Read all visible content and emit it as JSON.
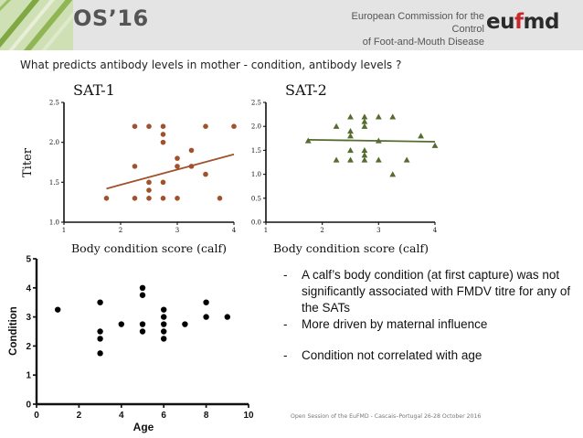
{
  "header": {
    "title": "OS’16",
    "organization_line1": "European Commission for the Control",
    "organization_line2": "of Foot-and-Mouth Disease",
    "logo_prefix": "eu",
    "logo_accent": "f",
    "logo_suffix": "md"
  },
  "slide": {
    "question": "What predicts antibody levels in mother - condition, antibody levels ?",
    "bullets": [
      "A calf’s body condition (at first capture) was not significantly associated with FMDV titre for any of the SATs",
      "More driven by maternal influence",
      "Condition not correlated with age"
    ],
    "footer": "Open Session of the EuFMD - Cascais–Portugal 26-28 October 2016"
  },
  "chart_data": [
    {
      "id": "sat1",
      "type": "scatter",
      "title": "SAT-1",
      "xlabel": "Body condition score (calf)",
      "ylabel": "Titer",
      "xlim": [
        1,
        4
      ],
      "ylim": [
        1.0,
        2.5
      ],
      "xticks": [
        1,
        2,
        3,
        4
      ],
      "yticks": [
        1.0,
        1.5,
        2.0,
        2.5
      ],
      "ytick_format": "1",
      "marker": "circle",
      "color": "#a0522d",
      "points": [
        [
          1.75,
          1.3
        ],
        [
          2.25,
          2.2
        ],
        [
          2.25,
          1.7
        ],
        [
          2.25,
          1.3
        ],
        [
          2.5,
          2.2
        ],
        [
          2.5,
          1.5
        ],
        [
          2.5,
          1.4
        ],
        [
          2.5,
          1.3
        ],
        [
          2.75,
          2.2
        ],
        [
          2.75,
          2.1
        ],
        [
          2.75,
          2.0
        ],
        [
          2.75,
          1.5
        ],
        [
          2.75,
          1.3
        ],
        [
          3.0,
          1.8
        ],
        [
          3.0,
          1.7
        ],
        [
          3.0,
          1.3
        ],
        [
          3.25,
          1.9
        ],
        [
          3.25,
          1.7
        ],
        [
          3.5,
          2.2
        ],
        [
          3.5,
          1.6
        ],
        [
          3.75,
          1.3
        ],
        [
          4.0,
          2.2
        ]
      ],
      "fit_line": [
        [
          1.75,
          1.42
        ],
        [
          4.0,
          1.85
        ]
      ]
    },
    {
      "id": "sat2",
      "type": "scatter",
      "title": "SAT-2",
      "xlabel": "Body condition score (calf)",
      "ylabel": "",
      "xlim": [
        1,
        4
      ],
      "ylim": [
        0.0,
        2.5
      ],
      "xticks": [
        1,
        2,
        3,
        4
      ],
      "yticks": [
        0.0,
        0.5,
        1.0,
        1.5,
        2.0,
        2.5
      ],
      "ytick_format": "1",
      "marker": "triangle",
      "color": "#556b2f",
      "points": [
        [
          1.75,
          1.7
        ],
        [
          2.25,
          2.0
        ],
        [
          2.25,
          1.3
        ],
        [
          2.5,
          2.2
        ],
        [
          2.5,
          1.9
        ],
        [
          2.5,
          1.8
        ],
        [
          2.5,
          1.5
        ],
        [
          2.5,
          1.3
        ],
        [
          2.75,
          2.2
        ],
        [
          2.75,
          2.1
        ],
        [
          2.75,
          2.0
        ],
        [
          2.75,
          1.5
        ],
        [
          2.75,
          1.4
        ],
        [
          2.75,
          1.3
        ],
        [
          3.0,
          2.2
        ],
        [
          3.0,
          1.7
        ],
        [
          3.0,
          1.3
        ],
        [
          3.25,
          2.2
        ],
        [
          3.25,
          1.0
        ],
        [
          3.5,
          1.3
        ],
        [
          3.75,
          1.8
        ],
        [
          4.0,
          1.6
        ]
      ],
      "fit_line": [
        [
          1.75,
          1.72
        ],
        [
          4.0,
          1.68
        ]
      ]
    },
    {
      "id": "age",
      "type": "scatter",
      "title": "",
      "xlabel": "Age",
      "ylabel": "Condition",
      "xlim": [
        0,
        10
      ],
      "ylim": [
        0,
        5
      ],
      "xticks": [
        0,
        2,
        4,
        6,
        8,
        10
      ],
      "yticks": [
        0,
        1,
        2,
        3,
        4,
        5
      ],
      "ytick_format": "0",
      "marker": "circle",
      "color": "#000000",
      "points": [
        [
          1,
          3.25
        ],
        [
          3,
          3.5
        ],
        [
          3,
          2.5
        ],
        [
          3,
          2.25
        ],
        [
          3,
          1.75
        ],
        [
          4,
          2.75
        ],
        [
          5,
          4.0
        ],
        [
          5,
          3.75
        ],
        [
          5,
          2.75
        ],
        [
          5,
          2.5
        ],
        [
          6,
          3.25
        ],
        [
          6,
          3.0
        ],
        [
          6,
          2.75
        ],
        [
          6,
          2.5
        ],
        [
          6,
          2.25
        ],
        [
          7,
          2.75
        ],
        [
          8,
          3.5
        ],
        [
          8,
          3.0
        ],
        [
          9,
          3.0
        ]
      ]
    }
  ]
}
